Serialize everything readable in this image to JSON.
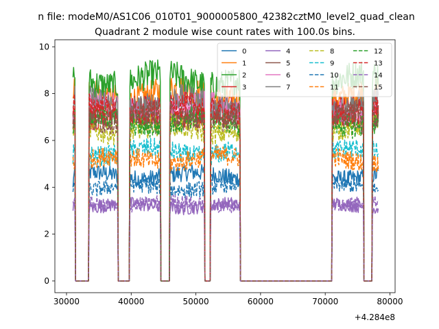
{
  "chart_data": {
    "type": "line",
    "suptitle": "n file: modeM0/AS1C06_010T01_9000005800_42382cztM0_level2_quad_clean",
    "title": "Quadrant 2 module wise count rates with 100.0s bins.",
    "xlabel": "",
    "ylabel": "",
    "offset_text": "+4.284e8",
    "xlim": [
      28200,
      80800
    ],
    "ylim": [
      -0.5,
      10.3
    ],
    "xticks": [
      30000,
      40000,
      50000,
      60000,
      70000,
      80000
    ],
    "xtick_labels": [
      "30000",
      "40000",
      "50000",
      "60000",
      "70000",
      "80000"
    ],
    "yticks": [
      0,
      2,
      4,
      6,
      8,
      10
    ],
    "ytick_labels": [
      "0",
      "2",
      "4",
      "6",
      "8",
      "10"
    ],
    "grid": false,
    "legend_placement": "top-right",
    "legend_columns": 4,
    "bin_size_s": 100,
    "segments": [
      [
        31000,
        31350
      ],
      [
        33500,
        37900
      ],
      [
        39800,
        44550
      ],
      [
        46000,
        51300
      ],
      [
        52300,
        56800
      ],
      [
        71100,
        75900
      ],
      [
        77300,
        78200
      ]
    ],
    "series": [
      {
        "name": "0",
        "level": 4.5,
        "color": "#1f77b4",
        "dash": "solid"
      },
      {
        "name": "1",
        "level": 8.0,
        "color": "#ff7f0e",
        "dash": "solid"
      },
      {
        "name": "2",
        "level": 8.6,
        "color": "#2ca02c",
        "dash": "solid"
      },
      {
        "name": "3",
        "level": 7.2,
        "color": "#d62728",
        "dash": "solid"
      },
      {
        "name": "4",
        "level": 3.2,
        "color": "#9467bd",
        "dash": "solid"
      },
      {
        "name": "5",
        "level": 7.0,
        "color": "#8c564b",
        "dash": "solid"
      },
      {
        "name": "6",
        "level": 7.4,
        "color": "#e377c2",
        "dash": "solid"
      },
      {
        "name": "7",
        "level": 7.6,
        "color": "#7f7f7f",
        "dash": "solid"
      },
      {
        "name": "8",
        "level": 6.5,
        "color": "#bcbd22",
        "dash": "dashed"
      },
      {
        "name": "9",
        "level": 5.5,
        "color": "#17becf",
        "dash": "dashed"
      },
      {
        "name": "10",
        "level": 4.0,
        "color": "#1f77b4",
        "dash": "dashed"
      },
      {
        "name": "11",
        "level": 5.2,
        "color": "#ff7f0e",
        "dash": "dashed"
      },
      {
        "name": "12",
        "level": 6.8,
        "color": "#2ca02c",
        "dash": "dashed"
      },
      {
        "name": "13",
        "level": 7.3,
        "color": "#d62728",
        "dash": "dashed"
      },
      {
        "name": "14",
        "level": 3.3,
        "color": "#9467bd",
        "dash": "dashed"
      },
      {
        "name": "15",
        "level": 7.0,
        "color": "#8c564b",
        "dash": "dashed"
      }
    ]
  }
}
